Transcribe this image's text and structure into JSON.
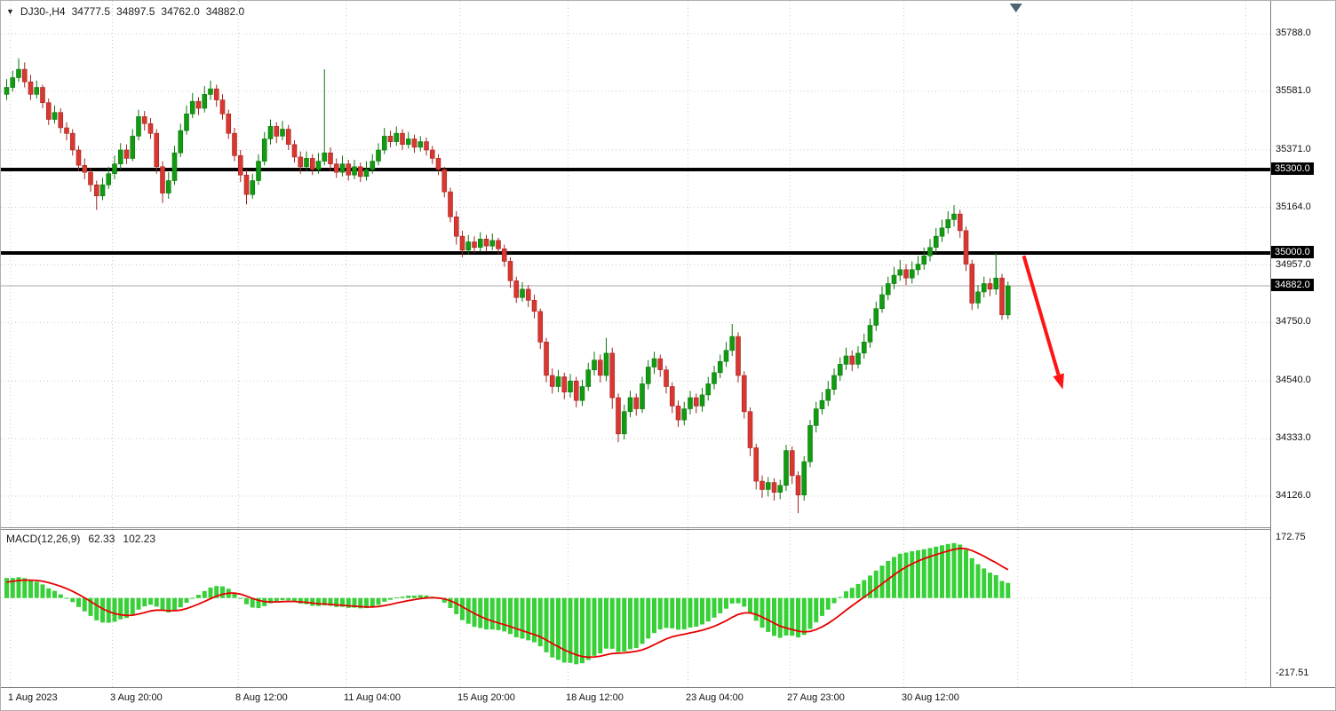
{
  "header": {
    "collapse_marker": "▼",
    "symbol_period": "DJ30-,H4",
    "open": "34777.5",
    "high": "34897.5",
    "low": "34762.0",
    "close": "34882.0"
  },
  "chart_data": {
    "type": "candlestick",
    "title": "DJ30-,H4",
    "symbol": "DJ30-",
    "timeframe": "H4",
    "colors": {
      "up": "#129b12",
      "down": "#d93832",
      "wick_up": "#0b770b",
      "wick_down": "#a3251f",
      "grid": "#c9c9c9",
      "hline": "#000000",
      "current_line": "#a8a8a8",
      "arrow": "#fe1414",
      "macd_hist": "#38d038",
      "macd_signal": "#e80000",
      "shift_marker": "#4f6270"
    },
    "y_axis": {
      "ticks": [
        "35788.0",
        "35581.0",
        "35371.0",
        "35164.0",
        "34957.0",
        "34750.0",
        "34540.0",
        "34333.0",
        "34126.0"
      ],
      "highlighted": [
        {
          "label": "35300.0",
          "value": 35300,
          "kind": "hline"
        },
        {
          "label": "35000.0",
          "value": 35000,
          "kind": "hline"
        },
        {
          "label": "34882.0",
          "value": 34882,
          "kind": "current-price"
        }
      ]
    },
    "x_axis": {
      "labels": [
        {
          "text": "1 Aug 2023",
          "index": 1
        },
        {
          "text": "3 Aug 20:00",
          "index": 18
        },
        {
          "text": "8 Aug 12:00",
          "index": 39
        },
        {
          "text": "11 Aug 04:00",
          "index": 57
        },
        {
          "text": "15 Aug 20:00",
          "index": 76
        },
        {
          "text": "18 Aug 12:00",
          "index": 94
        },
        {
          "text": "23 Aug 04:00",
          "index": 114
        },
        {
          "text": "27 Aug 23:00",
          "index": 131
        },
        {
          "text": "30 Aug 12:00",
          "index": 150
        }
      ],
      "future_grid_indices": [
        169,
        188,
        207
      ]
    },
    "hlines": [
      {
        "value": 35300,
        "width": 4
      },
      {
        "value": 35000,
        "width": 4
      }
    ],
    "current_price": 34882,
    "arrow": {
      "from_index": 170,
      "from_price": 34990,
      "to_index": 176.5,
      "to_price": 34510
    },
    "shift_marker_index": 168.7,
    "candles": [
      [
        35570,
        35625,
        35550,
        35595
      ],
      [
        35595,
        35655,
        35580,
        35630
      ],
      [
        35630,
        35700,
        35615,
        35660
      ],
      [
        35660,
        35685,
        35595,
        35615
      ],
      [
        35615,
        35640,
        35550,
        35570
      ],
      [
        35570,
        35620,
        35555,
        35595
      ],
      [
        35595,
        35605,
        35520,
        35540
      ],
      [
        35540,
        35555,
        35460,
        35480
      ],
      [
        35480,
        35530,
        35465,
        35505
      ],
      [
        35505,
        35520,
        35430,
        35450
      ],
      [
        35450,
        35470,
        35405,
        35430
      ],
      [
        35430,
        35445,
        35350,
        35370
      ],
      [
        35370,
        35385,
        35295,
        35315
      ],
      [
        35315,
        35340,
        35265,
        35290
      ],
      [
        35290,
        35305,
        35220,
        35245
      ],
      [
        35245,
        35260,
        35155,
        35205
      ],
      [
        35205,
        35270,
        35190,
        35245
      ],
      [
        35245,
        35310,
        35230,
        35285
      ],
      [
        35285,
        35350,
        35265,
        35320
      ],
      [
        35320,
        35395,
        35300,
        35370
      ],
      [
        35370,
        35390,
        35320,
        35340
      ],
      [
        35340,
        35445,
        35330,
        35420
      ],
      [
        35420,
        35515,
        35405,
        35490
      ],
      [
        35490,
        35510,
        35440,
        35465
      ],
      [
        35465,
        35485,
        35410,
        35430
      ],
      [
        35430,
        35445,
        35285,
        35310
      ],
      [
        35310,
        35330,
        35180,
        35215
      ],
      [
        35215,
        35290,
        35195,
        35260
      ],
      [
        35260,
        35385,
        35245,
        35360
      ],
      [
        35360,
        35465,
        35345,
        35440
      ],
      [
        35440,
        35530,
        35425,
        35500
      ],
      [
        35500,
        35575,
        35485,
        35545
      ],
      [
        35545,
        35560,
        35495,
        35520
      ],
      [
        35520,
        35600,
        35505,
        35570
      ],
      [
        35570,
        35620,
        35550,
        35590
      ],
      [
        35590,
        35605,
        35525,
        35550
      ],
      [
        35550,
        35570,
        35480,
        35500
      ],
      [
        35500,
        35515,
        35410,
        35430
      ],
      [
        35430,
        35450,
        35330,
        35350
      ],
      [
        35350,
        35370,
        35255,
        35280
      ],
      [
        35280,
        35300,
        35175,
        35210
      ],
      [
        35210,
        35285,
        35195,
        35260
      ],
      [
        35260,
        35355,
        35245,
        35330
      ],
      [
        35330,
        35435,
        35315,
        35410
      ],
      [
        35410,
        35480,
        35390,
        35455
      ],
      [
        35455,
        35470,
        35395,
        35420
      ],
      [
        35420,
        35475,
        35405,
        35445
      ],
      [
        35445,
        35460,
        35370,
        35390
      ],
      [
        35390,
        35405,
        35325,
        35345
      ],
      [
        35345,
        35365,
        35285,
        35310
      ],
      [
        35310,
        35365,
        35295,
        35340
      ],
      [
        35340,
        35355,
        35280,
        35300
      ],
      [
        35300,
        35360,
        35285,
        35330
      ],
      [
        35330,
        35660,
        35315,
        35360
      ],
      [
        35360,
        35380,
        35295,
        35320
      ],
      [
        35320,
        35340,
        35270,
        35290
      ],
      [
        35290,
        35350,
        35275,
        35320
      ],
      [
        35320,
        35335,
        35260,
        35280
      ],
      [
        35280,
        35335,
        35265,
        35310
      ],
      [
        35310,
        35325,
        35255,
        35275
      ],
      [
        35275,
        35330,
        35260,
        35300
      ],
      [
        35300,
        35355,
        35285,
        35330
      ],
      [
        35330,
        35395,
        35315,
        35370
      ],
      [
        35370,
        35450,
        35355,
        35420
      ],
      [
        35420,
        35440,
        35380,
        35400
      ],
      [
        35400,
        35455,
        35385,
        35430
      ],
      [
        35430,
        35445,
        35370,
        35390
      ],
      [
        35390,
        35435,
        35375,
        35410
      ],
      [
        35410,
        35425,
        35360,
        35380
      ],
      [
        35380,
        35420,
        35365,
        35400
      ],
      [
        35400,
        35415,
        35350,
        35370
      ],
      [
        35370,
        35385,
        35320,
        35340
      ],
      [
        35340,
        35355,
        35280,
        35300
      ],
      [
        35300,
        35310,
        35200,
        35220
      ],
      [
        35220,
        35235,
        35110,
        35130
      ],
      [
        35130,
        35150,
        35030,
        35060
      ],
      [
        35060,
        35080,
        34985,
        35010
      ],
      [
        35010,
        35065,
        34995,
        35040
      ],
      [
        35040,
        35060,
        35000,
        35020
      ],
      [
        35020,
        35075,
        35005,
        35050
      ],
      [
        35050,
        35065,
        35005,
        35025
      ],
      [
        35025,
        35070,
        35010,
        35045
      ],
      [
        35045,
        35055,
        34995,
        35015
      ],
      [
        35015,
        35030,
        34950,
        34970
      ],
      [
        34970,
        34985,
        34875,
        34900
      ],
      [
        34900,
        34915,
        34820,
        34840
      ],
      [
        34840,
        34895,
        34825,
        34870
      ],
      [
        34870,
        34885,
        34805,
        34830
      ],
      [
        34830,
        34850,
        34765,
        34790
      ],
      [
        34790,
        34800,
        34655,
        34680
      ],
      [
        34680,
        34695,
        34535,
        34560
      ],
      [
        34560,
        34585,
        34495,
        34520
      ],
      [
        34520,
        34580,
        34500,
        34555
      ],
      [
        34555,
        34570,
        34475,
        34500
      ],
      [
        34500,
        34565,
        34480,
        34540
      ],
      [
        34540,
        34555,
        34445,
        34470
      ],
      [
        34470,
        34545,
        34450,
        34520
      ],
      [
        34520,
        34605,
        34505,
        34580
      ],
      [
        34580,
        34645,
        34560,
        34615
      ],
      [
        34615,
        34635,
        34535,
        34560
      ],
      [
        34560,
        34695,
        34540,
        34640
      ],
      [
        34640,
        34660,
        34440,
        34480
      ],
      [
        34480,
        34495,
        34320,
        34350
      ],
      [
        34350,
        34455,
        34330,
        34430
      ],
      [
        34430,
        34505,
        34410,
        34480
      ],
      [
        34480,
        34495,
        34415,
        34440
      ],
      [
        34440,
        34555,
        34425,
        34530
      ],
      [
        34530,
        34615,
        34510,
        34590
      ],
      [
        34590,
        34645,
        34565,
        34620
      ],
      [
        34620,
        34635,
        34555,
        34580
      ],
      [
        34580,
        34595,
        34495,
        34520
      ],
      [
        34520,
        34535,
        34425,
        34450
      ],
      [
        34450,
        34470,
        34375,
        34400
      ],
      [
        34400,
        34465,
        34380,
        34440
      ],
      [
        34440,
        34505,
        34420,
        34480
      ],
      [
        34480,
        34495,
        34425,
        34450
      ],
      [
        34450,
        34515,
        34430,
        34490
      ],
      [
        34490,
        34555,
        34470,
        34530
      ],
      [
        34530,
        34595,
        34510,
        34570
      ],
      [
        34570,
        34635,
        34550,
        34610
      ],
      [
        34610,
        34680,
        34590,
        34650
      ],
      [
        34650,
        34745,
        34630,
        34700
      ],
      [
        34700,
        34715,
        34535,
        34560
      ],
      [
        34560,
        34575,
        34405,
        34430
      ],
      [
        34430,
        34445,
        34270,
        34300
      ],
      [
        34300,
        34315,
        34150,
        34180
      ],
      [
        34180,
        34200,
        34120,
        34150
      ],
      [
        34150,
        34195,
        34125,
        34175
      ],
      [
        34175,
        34190,
        34110,
        34140
      ],
      [
        34140,
        34185,
        34115,
        34165
      ],
      [
        34165,
        34310,
        34145,
        34290
      ],
      [
        34290,
        34305,
        34170,
        34200
      ],
      [
        34200,
        34215,
        34065,
        34130
      ],
      [
        34130,
        34270,
        34110,
        34250
      ],
      [
        34250,
        34400,
        34230,
        34380
      ],
      [
        34380,
        34465,
        34355,
        34440
      ],
      [
        34440,
        34500,
        34420,
        34470
      ],
      [
        34470,
        34540,
        34450,
        34510
      ],
      [
        34510,
        34585,
        34490,
        34560
      ],
      [
        34560,
        34625,
        34540,
        34600
      ],
      [
        34600,
        34660,
        34580,
        34630
      ],
      [
        34630,
        34650,
        34575,
        34600
      ],
      [
        34600,
        34665,
        34585,
        34640
      ],
      [
        34640,
        34710,
        34620,
        34680
      ],
      [
        34680,
        34765,
        34660,
        34740
      ],
      [
        34740,
        34825,
        34720,
        34800
      ],
      [
        34800,
        34880,
        34785,
        34850
      ],
      [
        34850,
        34915,
        34830,
        34890
      ],
      [
        34890,
        34950,
        34870,
        34920
      ],
      [
        34920,
        34975,
        34900,
        34940
      ],
      [
        34940,
        34960,
        34885,
        34910
      ],
      [
        34910,
        34970,
        34890,
        34940
      ],
      [
        34940,
        34990,
        34920,
        34960
      ],
      [
        34960,
        35020,
        34940,
        34990
      ],
      [
        34990,
        35050,
        34970,
        35020
      ],
      [
        35020,
        35090,
        35000,
        35060
      ],
      [
        35060,
        35120,
        35040,
        35090
      ],
      [
        35090,
        35150,
        35070,
        35120
      ],
      [
        35120,
        35172,
        35095,
        35140
      ],
      [
        35140,
        35155,
        35055,
        35080
      ],
      [
        35080,
        35095,
        34935,
        34960
      ],
      [
        34960,
        34975,
        34795,
        34820
      ],
      [
        34820,
        34885,
        34800,
        34860
      ],
      [
        34860,
        34915,
        34840,
        34890
      ],
      [
        34890,
        34910,
        34845,
        34870
      ],
      [
        34870,
        35000,
        34850,
        34910
      ],
      [
        34910,
        34925,
        34760,
        34777.5
      ],
      [
        34777.5,
        34897.5,
        34762,
        34882
      ]
    ],
    "macd": {
      "label": "MACD(12,26,9)",
      "fast": 12,
      "slow": 26,
      "signal_period": 9,
      "main_value": "62.33",
      "signal_value": "102.23",
      "scale_top": "172.75",
      "scale_bottom": "-217.51"
    }
  }
}
